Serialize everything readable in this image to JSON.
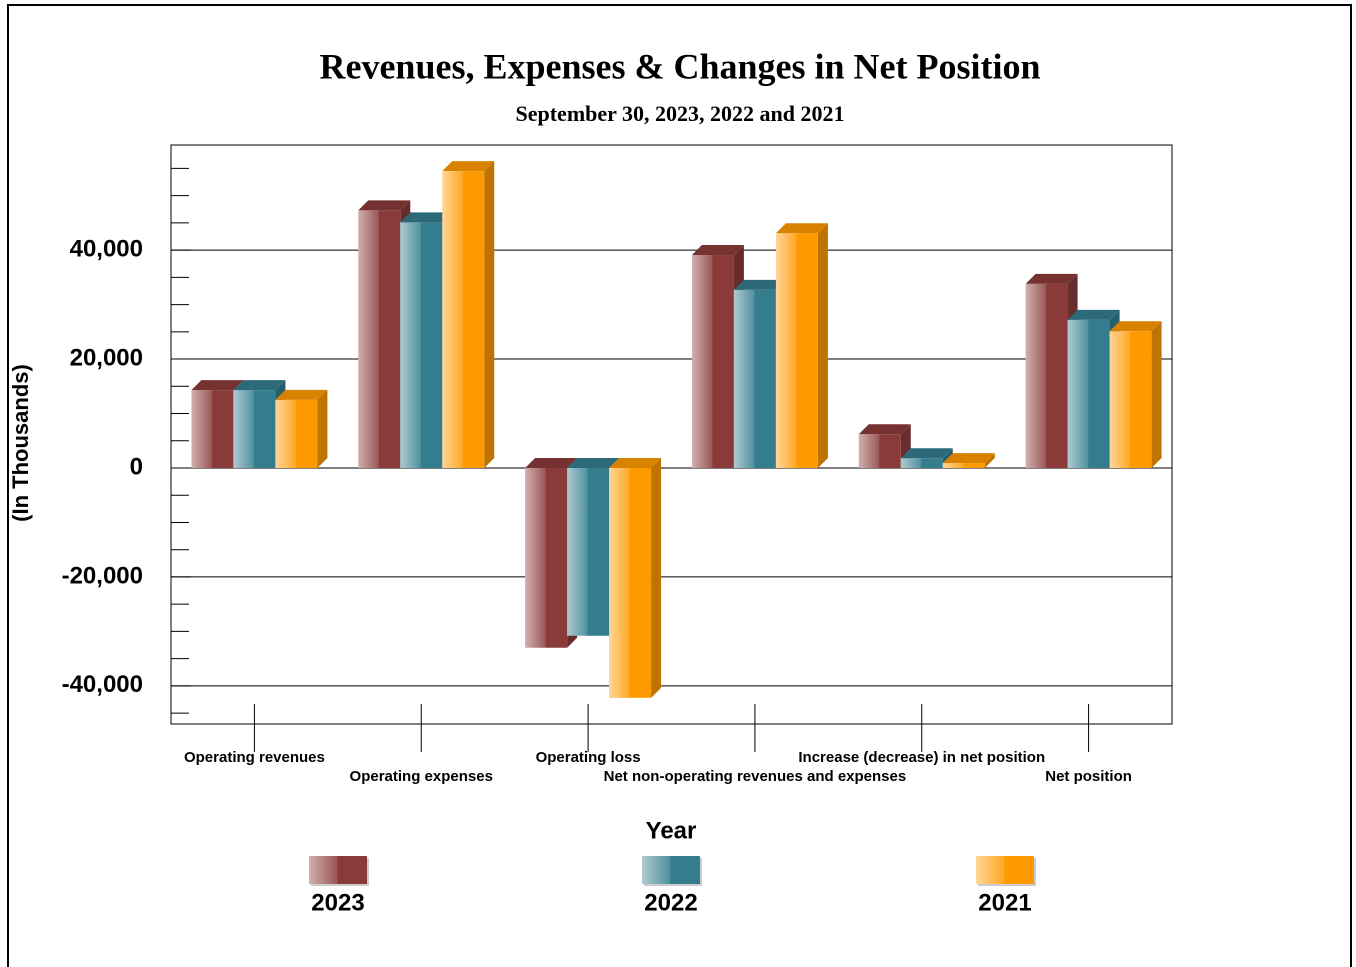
{
  "chart_data": {
    "type": "bar3d",
    "title": "Revenues, Expenses & Changes in Net Position",
    "subtitle": "September 30, 2023, 2022 and 2021",
    "y_label": "(In Thousands)",
    "legend_title": "Year",
    "categories": [
      "Operating revenues",
      "Operating expenses",
      "Operating loss",
      "Net non-operating revenues and expenses",
      "Increase (decrease) in net position",
      "Net position"
    ],
    "series": [
      {
        "name": "2023",
        "color": "#8b3a3a",
        "values": [
          14300,
          47300,
          -33000,
          39100,
          6200,
          33800
        ]
      },
      {
        "name": "2022",
        "color": "#347d8e",
        "values": [
          14300,
          45100,
          -30800,
          32700,
          1800,
          27200
        ]
      },
      {
        "name": "2021",
        "color": "#ff9900",
        "values": [
          12500,
          54500,
          -42200,
          43100,
          900,
          25100
        ]
      }
    ],
    "ylim": [
      -47000,
      59300
    ],
    "yticks": [
      {
        "value": -40000,
        "label": "-40,000"
      },
      {
        "value": -20000,
        "label": "-20,000"
      },
      0,
      {
        "value": 20000,
        "label": "20,000"
      },
      {
        "value": 40000,
        "label": "40,000"
      }
    ],
    "minor_yticks": [
      -45000,
      -35000,
      -30000,
      -25000,
      -15000,
      -10000,
      -5000,
      5000,
      10000,
      15000,
      25000,
      30000,
      35000,
      45000,
      50000,
      55000
    ],
    "grid": true
  }
}
